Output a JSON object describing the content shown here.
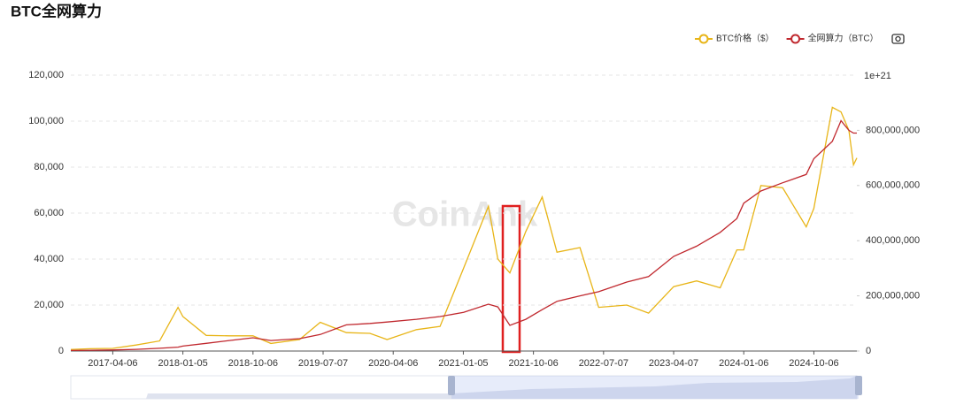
{
  "chart_data": {
    "type": "line",
    "title": "BTC全网算力",
    "watermark": "CoinAnk",
    "y2label": "1e+21",
    "grid": true,
    "legend_position": "top-right",
    "x": [
      "2016-10-24",
      "2017-01-06",
      "2017-04-06",
      "2017-07-06",
      "2017-10-06",
      "2017-12-17",
      "2018-01-05",
      "2018-04-06",
      "2018-07-06",
      "2018-10-06",
      "2018-12-15",
      "2019-04-06",
      "2019-06-26",
      "2019-10-06",
      "2020-01-06",
      "2020-03-13",
      "2020-07-06",
      "2020-10-06",
      "2021-01-06",
      "2021-04-13",
      "2021-05-20",
      "2021-07-06",
      "2021-09-06",
      "2021-11-09",
      "2022-01-06",
      "2022-04-06",
      "2022-06-18",
      "2022-10-06",
      "2022-12-30",
      "2023-04-07",
      "2023-07-06",
      "2023-10-06",
      "2023-12-10",
      "2024-01-06",
      "2024-03-13",
      "2024-06-06",
      "2024-09-06",
      "2024-10-06",
      "2024-12-17",
      "2025-01-20",
      "2025-02-20",
      "2025-03-10",
      "2025-03-23"
    ],
    "xlim": [
      "2016-10-24",
      "2025-03-23"
    ],
    "xticks": [
      "2017-04-06",
      "2018-01-05",
      "2018-10-06",
      "2019-07-07",
      "2020-04-06",
      "2021-01-05",
      "2021-10-06",
      "2022-07-07",
      "2023-04-07",
      "2024-01-06",
      "2024-10-06"
    ],
    "ylim": [
      0,
      120000
    ],
    "yticks": [
      0,
      {
        "value": 20000,
        "label": "20,000"
      },
      {
        "value": 40000,
        "label": "40,000"
      },
      {
        "value": 60000,
        "label": "60,000"
      },
      {
        "value": 80000,
        "label": "80,000"
      },
      {
        "value": 100000,
        "label": "100,000"
      },
      {
        "value": 120000,
        "label": "120,000"
      }
    ],
    "y2lim": [
      0,
      1000000000
    ],
    "y2ticks": [
      0,
      {
        "value": 200000000,
        "label": "200,000,000"
      },
      {
        "value": 400000000,
        "label": "400,000,000"
      },
      {
        "value": 600000000,
        "label": "600,000,000"
      },
      {
        "value": 800000000,
        "label": "800,000,000"
      }
    ],
    "series": [
      {
        "name": "BTC价格（$）",
        "color": "#e8b518",
        "values": [
          650,
          1000,
          1150,
          2600,
          4400,
          19000,
          15000,
          6800,
          6600,
          6600,
          3300,
          5000,
          12500,
          8000,
          7700,
          5000,
          9300,
          10700,
          36000,
          63000,
          40000,
          34000,
          52000,
          67000,
          43000,
          45000,
          19000,
          20000,
          16500,
          28000,
          30500,
          27500,
          44000,
          44000,
          72000,
          71000,
          54000,
          62000,
          106000,
          104000,
          96000,
          81000,
          84000
        ]
      },
      {
        "name": "全网算力（BTC）",
        "color": "#c0282e",
        "axis": "y2",
        "values": [
          2000000,
          3000000,
          4000000,
          6000000,
          10000000,
          14000000,
          18000000,
          28000000,
          38000000,
          48000000,
          38000000,
          45000000,
          60000000,
          95000000,
          100000000,
          105000000,
          115000000,
          125000000,
          140000000,
          170000000,
          160000000,
          93000000,
          115000000,
          150000000,
          180000000,
          200000000,
          215000000,
          250000000,
          270000000,
          343000000,
          380000000,
          430000000,
          480000000,
          536000000,
          580000000,
          610000000,
          640000000,
          697000000,
          760000000,
          835000000,
          800000000,
          790000000,
          790000000
        ]
      }
    ]
  }
}
